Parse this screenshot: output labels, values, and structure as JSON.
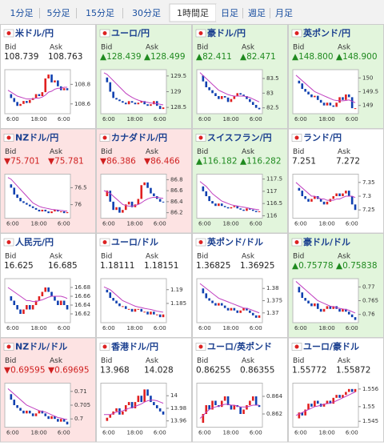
{
  "tabs": [
    "1分足",
    "5分足",
    "15分足",
    "30分足",
    "1時間足",
    "日足",
    "週足",
    "月足"
  ],
  "selected_tab": 4,
  "labels": {
    "bid": "Bid",
    "ask": "Ask"
  },
  "xticks": [
    "6:00",
    "18:00",
    "6:00"
  ],
  "pairs": [
    {
      "name": "米ドル/円",
      "trend": "flat",
      "bid": "108.739",
      "ask": "108.763",
      "ylim": [
        108.5,
        108.95
      ],
      "yticks": [
        108.6,
        108.8
      ],
      "values": [
        108.7,
        108.66,
        108.62,
        108.58,
        108.6,
        108.63,
        108.61,
        108.64,
        108.66,
        108.7,
        108.68,
        108.72,
        108.86,
        108.9,
        108.82,
        108.84,
        108.78,
        108.74,
        108.76,
        108.74
      ],
      "ma": [
        108.74,
        108.72,
        108.7,
        108.68,
        108.67,
        108.66,
        108.65,
        108.65,
        108.65,
        108.66,
        108.66,
        108.67,
        108.69,
        108.72,
        108.73,
        108.75,
        108.76,
        108.76,
        108.77,
        108.77
      ]
    },
    {
      "name": "ユーロ/円",
      "trend": "up",
      "bid": "▲128.439",
      "ask": "▲128.499",
      "ylim": [
        128.3,
        129.7
      ],
      "yticks": [
        128.5,
        129,
        129.5
      ],
      "values": [
        129.45,
        129.3,
        129.0,
        128.8,
        128.75,
        128.7,
        128.65,
        128.6,
        128.7,
        128.65,
        128.6,
        128.65,
        128.7,
        128.6,
        128.55,
        128.6,
        128.7,
        128.55,
        128.45,
        128.5
      ],
      "ma": [
        129.6,
        129.55,
        129.45,
        129.35,
        129.25,
        129.15,
        129.05,
        128.95,
        128.88,
        128.82,
        128.77,
        128.73,
        128.7,
        128.68,
        128.66,
        128.64,
        128.63,
        128.62,
        128.6,
        128.58
      ]
    },
    {
      "name": "豪ドル/円",
      "trend": "up",
      "bid": "▲82.411",
      "ask": "▲82.471",
      "ylim": [
        82.3,
        83.8
      ],
      "yticks": [
        82.5,
        83,
        83.5
      ],
      "values": [
        83.6,
        83.4,
        83.2,
        83.1,
        83.0,
        82.9,
        82.8,
        82.9,
        82.85,
        82.7,
        82.8,
        82.9,
        83.0,
        82.95,
        82.9,
        82.8,
        82.7,
        82.6,
        82.5,
        82.45
      ],
      "ma": [
        83.7,
        83.6,
        83.5,
        83.4,
        83.3,
        83.2,
        83.1,
        83.05,
        83.0,
        82.95,
        82.92,
        82.9,
        82.9,
        82.9,
        82.9,
        82.88,
        82.85,
        82.8,
        82.75,
        82.7
      ]
    },
    {
      "name": "英ポンド/円",
      "trend": "up",
      "bid": "▲148.800",
      "ask": "▲148.900",
      "ylim": [
        148.7,
        150.3
      ],
      "yticks": [
        149,
        149.5,
        150
      ],
      "values": [
        149.9,
        149.8,
        149.6,
        149.5,
        149.4,
        149.3,
        149.35,
        149.2,
        149.1,
        149.0,
        149.1,
        149.0,
        148.95,
        149.1,
        149.3,
        149.2,
        149.4,
        149.3,
        148.9,
        148.9
      ],
      "ma": [
        150.1,
        150.0,
        149.9,
        149.8,
        149.7,
        149.6,
        149.5,
        149.45,
        149.4,
        149.35,
        149.3,
        149.25,
        149.2,
        149.18,
        149.17,
        149.17,
        149.18,
        149.2,
        149.15,
        149.1
      ]
    },
    {
      "name": "NZドル/円",
      "trend": "down",
      "bid": "▼75.701",
      "ask": "▼75.781",
      "ylim": [
        75.6,
        76.9
      ],
      "yticks": [
        76,
        76.5
      ],
      "values": [
        76.6,
        76.5,
        76.3,
        76.2,
        76.1,
        76.05,
        76.0,
        75.95,
        75.9,
        75.85,
        75.8,
        75.85,
        75.8,
        75.75,
        75.8,
        75.85,
        75.8,
        75.8,
        75.75,
        75.78
      ],
      "ma": [
        76.8,
        76.75,
        76.65,
        76.55,
        76.45,
        76.35,
        76.25,
        76.15,
        76.05,
        76.0,
        75.95,
        75.92,
        75.9,
        75.88,
        75.86,
        75.85,
        75.84,
        75.83,
        75.82,
        75.81
      ]
    },
    {
      "name": "カナダドル/円",
      "trend": "down",
      "bid": "▼86.386",
      "ask": "▼86.466",
      "ylim": [
        86.1,
        86.9
      ],
      "yticks": [
        86.2,
        86.4,
        86.6,
        86.8
      ],
      "values": [
        86.5,
        86.6,
        86.4,
        86.25,
        86.3,
        86.2,
        86.25,
        86.35,
        86.4,
        86.3,
        86.35,
        86.45,
        86.7,
        86.75,
        86.65,
        86.55,
        86.5,
        86.45,
        86.4,
        86.39
      ],
      "ma": [
        86.6,
        86.58,
        86.55,
        86.5,
        86.45,
        86.4,
        86.35,
        86.33,
        86.32,
        86.32,
        86.33,
        86.35,
        86.38,
        86.42,
        86.45,
        86.47,
        86.48,
        86.48,
        86.47,
        86.46
      ]
    },
    {
      "name": "スイスフラン/円",
      "trend": "up",
      "bid": "▲116.182",
      "ask": "▲116.282",
      "ylim": [
        115.9,
        117.7
      ],
      "yticks": [
        116,
        116.5,
        117,
        117.5
      ],
      "values": [
        117.2,
        117.0,
        116.8,
        116.6,
        116.5,
        116.4,
        116.5,
        116.4,
        116.35,
        116.3,
        116.35,
        116.4,
        116.3,
        116.25,
        116.2,
        116.3,
        116.25,
        116.2,
        116.15,
        116.18
      ],
      "ma": [
        117.4,
        117.3,
        117.2,
        117.05,
        116.9,
        116.8,
        116.7,
        116.6,
        116.55,
        116.5,
        116.45,
        116.42,
        116.4,
        116.37,
        116.35,
        116.33,
        116.3,
        116.28,
        116.26,
        116.24
      ]
    },
    {
      "name": "ランド/円",
      "trend": "flat",
      "bid": "7.251",
      "ask": "7.272",
      "ylim": [
        7.22,
        7.38
      ],
      "yticks": [
        7.25,
        7.3,
        7.35
      ],
      "values": [
        7.33,
        7.32,
        7.3,
        7.29,
        7.28,
        7.29,
        7.3,
        7.29,
        7.28,
        7.27,
        7.28,
        7.29,
        7.3,
        7.31,
        7.3,
        7.31,
        7.32,
        7.3,
        7.27,
        7.25
      ],
      "ma": [
        7.35,
        7.34,
        7.33,
        7.32,
        7.31,
        7.3,
        7.3,
        7.295,
        7.29,
        7.29,
        7.285,
        7.285,
        7.285,
        7.29,
        7.29,
        7.295,
        7.3,
        7.3,
        7.3,
        7.295
      ]
    },
    {
      "name": "人民元/円",
      "trend": "flat",
      "bid": "16.625",
      "ask": "16.685",
      "ylim": [
        16.6,
        16.7
      ],
      "yticks": [
        16.62,
        16.64,
        16.66,
        16.68
      ],
      "values": [
        16.66,
        16.65,
        16.64,
        16.63,
        16.62,
        16.63,
        16.64,
        16.63,
        16.64,
        16.65,
        16.66,
        16.67,
        16.68,
        16.67,
        16.66,
        16.65,
        16.64,
        16.65,
        16.64,
        16.63
      ],
      "ma": [
        16.68,
        16.675,
        16.67,
        16.665,
        16.66,
        16.655,
        16.65,
        16.65,
        16.648,
        16.648,
        16.65,
        16.652,
        16.655,
        16.658,
        16.66,
        16.66,
        16.66,
        16.66,
        16.658,
        16.655
      ]
    },
    {
      "name": "ユーロ/ドル",
      "trend": "flat",
      "bid": "1.18111",
      "ask": "1.18151",
      "ylim": [
        1.178,
        1.194
      ],
      "yticks": [
        1.185,
        1.19
      ],
      "values": [
        1.19,
        1.189,
        1.187,
        1.186,
        1.185,
        1.184,
        1.184,
        1.183,
        1.183,
        1.182,
        1.183,
        1.183,
        1.182,
        1.182,
        1.181,
        1.182,
        1.181,
        1.181,
        1.18,
        1.181
      ],
      "ma": [
        1.191,
        1.1905,
        1.19,
        1.189,
        1.188,
        1.187,
        1.186,
        1.1855,
        1.185,
        1.1845,
        1.184,
        1.1837,
        1.1835,
        1.1832,
        1.183,
        1.1828,
        1.1825,
        1.1822,
        1.182,
        1.1818
      ]
    },
    {
      "name": "英ポンド/ドル",
      "trend": "flat",
      "bid": "1.36825",
      "ask": "1.36925",
      "ylim": [
        1.366,
        1.384
      ],
      "yticks": [
        1.37,
        1.375,
        1.38
      ],
      "values": [
        1.38,
        1.378,
        1.376,
        1.375,
        1.374,
        1.373,
        1.374,
        1.373,
        1.372,
        1.371,
        1.372,
        1.371,
        1.37,
        1.371,
        1.372,
        1.371,
        1.37,
        1.369,
        1.368,
        1.369
      ],
      "ma": [
        1.382,
        1.381,
        1.38,
        1.379,
        1.378,
        1.377,
        1.376,
        1.3755,
        1.375,
        1.3745,
        1.374,
        1.3735,
        1.373,
        1.3725,
        1.372,
        1.3718,
        1.3715,
        1.371,
        1.3705,
        1.37
      ]
    },
    {
      "name": "豪ドル/ドル",
      "trend": "up",
      "bid": "▲0.75778",
      "ask": "▲0.75838",
      "ylim": [
        0.757,
        0.773
      ],
      "yticks": [
        0.76,
        0.765,
        0.77
      ],
      "values": [
        0.77,
        0.768,
        0.766,
        0.765,
        0.764,
        0.763,
        0.764,
        0.762,
        0.761,
        0.762,
        0.763,
        0.762,
        0.763,
        0.762,
        0.761,
        0.762,
        0.761,
        0.76,
        0.759,
        0.758
      ],
      "ma": [
        0.772,
        0.771,
        0.77,
        0.769,
        0.768,
        0.767,
        0.766,
        0.765,
        0.7645,
        0.764,
        0.7635,
        0.763,
        0.7628,
        0.7625,
        0.7622,
        0.762,
        0.7618,
        0.7615,
        0.761,
        0.7605
      ]
    },
    {
      "name": "NZドル/ドル",
      "trend": "down",
      "bid": "▼0.69595",
      "ask": "▼0.69695",
      "ylim": [
        0.697,
        0.713
      ],
      "yticks": [
        0.7,
        0.705,
        0.71
      ],
      "values": [
        0.709,
        0.707,
        0.705,
        0.704,
        0.703,
        0.702,
        0.703,
        0.702,
        0.701,
        0.702,
        0.703,
        0.702,
        0.701,
        0.7,
        0.701,
        0.7,
        0.699,
        0.7,
        0.699,
        0.698
      ],
      "ma": [
        0.711,
        0.71,
        0.709,
        0.708,
        0.707,
        0.706,
        0.705,
        0.7045,
        0.704,
        0.7035,
        0.703,
        0.7027,
        0.7025,
        0.702,
        0.7015,
        0.701,
        0.7005,
        0.7003,
        0.7,
        0.6998
      ]
    },
    {
      "name": "香港ドル/円",
      "trend": "flat",
      "bid": "13.968",
      "ask": "14.028",
      "ylim": [
        13.95,
        14.02
      ],
      "yticks": [
        13.96,
        13.98,
        14
      ],
      "values": [
        13.96,
        13.965,
        13.97,
        13.975,
        13.98,
        13.97,
        13.975,
        13.985,
        13.99,
        13.98,
        13.99,
        14.0,
        13.99,
        14.01,
        14.0,
        13.99,
        13.985,
        13.98,
        13.975,
        13.97
      ],
      "ma": [
        13.97,
        13.97,
        13.97,
        13.972,
        13.974,
        13.975,
        13.976,
        13.978,
        13.98,
        13.981,
        13.983,
        13.985,
        13.987,
        13.99,
        13.992,
        13.993,
        13.993,
        13.992,
        13.99,
        13.988
      ]
    },
    {
      "name": "ユーロ/英ポンド",
      "trend": "flat",
      "bid": "0.86255",
      "ask": "0.86355",
      "ylim": [
        0.8605,
        0.8655
      ],
      "yticks": [
        0.862,
        0.864
      ],
      "values": [
        0.861,
        0.862,
        0.863,
        0.8625,
        0.8635,
        0.863,
        0.8628,
        0.8635,
        0.864,
        0.863,
        0.8625,
        0.863,
        0.8628,
        0.862,
        0.8625,
        0.863,
        0.8635,
        0.864,
        0.863,
        0.8628
      ],
      "ma": [
        0.8615,
        0.8618,
        0.8622,
        0.8625,
        0.8627,
        0.8628,
        0.8629,
        0.863,
        0.8631,
        0.8631,
        0.863,
        0.863,
        0.8629,
        0.8628,
        0.8628,
        0.8628,
        0.8629,
        0.863,
        0.863,
        0.863
      ]
    },
    {
      "name": "ユーロ/豪ドル",
      "trend": "flat",
      "bid": "1.55772",
      "ask": "1.55872",
      "ylim": [
        1.543,
        1.558
      ],
      "yticks": [
        1.545,
        1.55,
        1.556
      ],
      "values": [
        1.546,
        1.548,
        1.547,
        1.549,
        1.551,
        1.55,
        1.552,
        1.551,
        1.55,
        1.551,
        1.552,
        1.551,
        1.553,
        1.554,
        1.553,
        1.554,
        1.555,
        1.556,
        1.555,
        1.556
      ],
      "ma": [
        1.547,
        1.5475,
        1.548,
        1.5485,
        1.549,
        1.5495,
        1.55,
        1.5502,
        1.5505,
        1.5508,
        1.551,
        1.5512,
        1.5515,
        1.552,
        1.5525,
        1.553,
        1.5535,
        1.554,
        1.5545,
        1.555
      ]
    }
  ]
}
